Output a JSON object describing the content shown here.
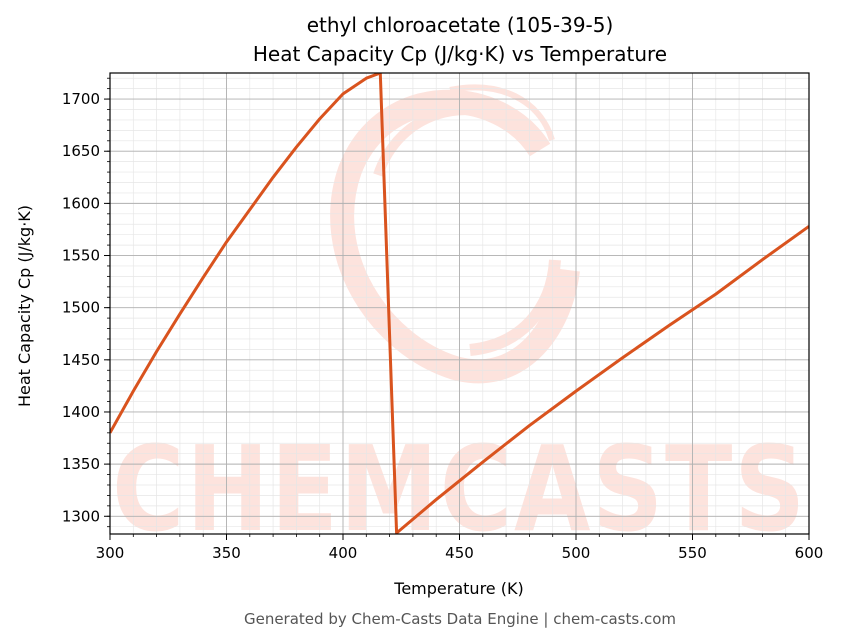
{
  "colors": {
    "line": "#d9531e",
    "watermark": "#fde3dd",
    "grid_major": "#b0b0b0",
    "grid_minor": "#e6e6e6",
    "footer": "#555555"
  },
  "footer": "Generated by Chem-Casts Data Engine | chem-casts.com",
  "watermark": {
    "text": "CHEMCASTS",
    "logo": "swirl-logo"
  },
  "chart_data": {
    "type": "line",
    "title_line1": "ethyl chloroacetate (105-39-5)",
    "title_line2": "Heat Capacity Cp (J/kg·K) vs Temperature",
    "xlabel": "Temperature (K)",
    "ylabel": "Heat Capacity Cp (J/kg·K)",
    "xlim": [
      300,
      600
    ],
    "ylim": [
      1283,
      1725
    ],
    "xticks": [
      300,
      350,
      400,
      450,
      500,
      550,
      600
    ],
    "yticks": [
      1300,
      1350,
      1400,
      1450,
      1500,
      1550,
      1600,
      1650,
      1700
    ],
    "grid": true,
    "minor_grid": true,
    "legend": "none",
    "series": [
      {
        "x": [
          300,
          310,
          320,
          330,
          340,
          350,
          360,
          370,
          380,
          390,
          400,
          410,
          416,
          423,
          440,
          460,
          480,
          500,
          520,
          540,
          560,
          580,
          600
        ],
        "y": [
          1380,
          1420,
          1458,
          1494,
          1529,
          1563,
          1594,
          1625,
          1654,
          1681,
          1705,
          1720,
          1725,
          1284,
          1316,
          1352,
          1387,
          1420,
          1452,
          1483,
          1513,
          1546,
          1578
        ]
      }
    ]
  }
}
